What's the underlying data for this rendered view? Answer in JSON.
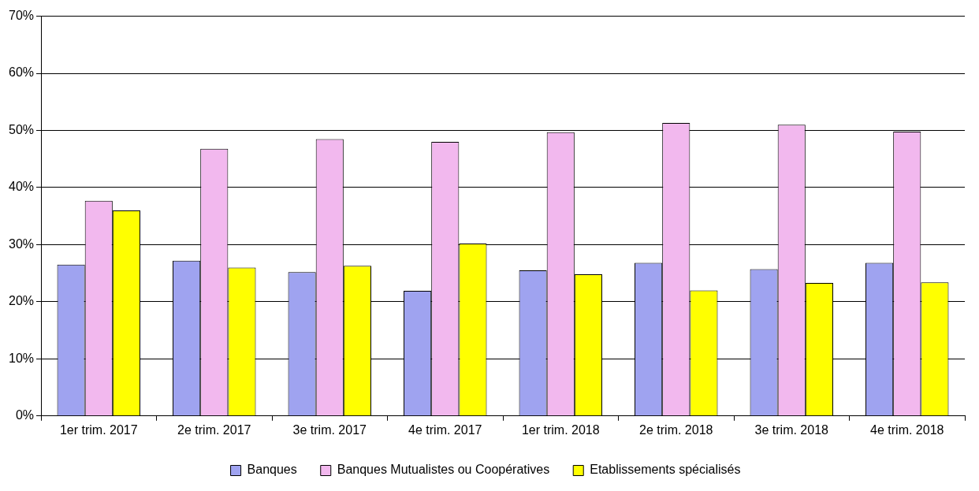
{
  "chart_data": {
    "type": "bar",
    "categories": [
      "1er trim. 2017",
      "2e trim. 2017",
      "3e trim. 2017",
      "4e trim. 2017",
      "1er trim. 2018",
      "2e trim. 2018",
      "3e trim. 2018",
      "4e trim. 2018"
    ],
    "series": [
      {
        "name": "Banques",
        "color": "#9fa3f0",
        "values": [
          26.5,
          27.2,
          25.2,
          21.9,
          25.5,
          26.8,
          25.7,
          26.8
        ]
      },
      {
        "name": "Banques Mutualistes ou Coopératives",
        "color": "#f2b8ee",
        "values": [
          37.7,
          46.8,
          48.5,
          48.0,
          49.7,
          51.3,
          51.0,
          49.8
        ]
      },
      {
        "name": "Etablissements spécialisés",
        "color": "#ffff00",
        "values": [
          36.0,
          26.0,
          26.3,
          30.2,
          24.8,
          22.0,
          23.3,
          23.4
        ]
      }
    ],
    "ylim": [
      0,
      70
    ],
    "yticks": [
      {
        "value": 0,
        "label": "0%"
      },
      {
        "value": 10,
        "label": "10%"
      },
      {
        "value": 20,
        "label": "20%"
      },
      {
        "value": 30,
        "label": "30%"
      },
      {
        "value": 40,
        "label": "40%"
      },
      {
        "value": 50,
        "label": "50%"
      },
      {
        "value": 60,
        "label": "60%"
      },
      {
        "value": 70,
        "label": "70%"
      }
    ],
    "grid": "y",
    "legend": "bottom"
  }
}
